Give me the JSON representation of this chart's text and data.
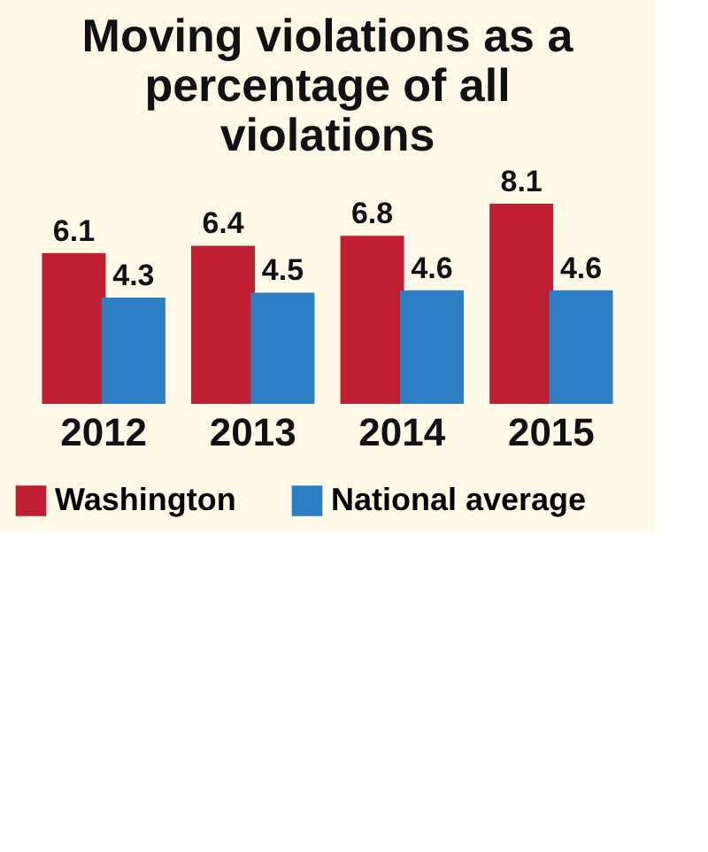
{
  "chart_data": {
    "type": "bar",
    "title": "Moving violations as a percentage of all violations",
    "categories": [
      "2012",
      "2013",
      "2014",
      "2015"
    ],
    "series": [
      {
        "name": "Washington",
        "color": "#c01f33",
        "values": [
          6.1,
          6.4,
          6.8,
          8.1
        ]
      },
      {
        "name": "National average",
        "color": "#2b7fc2",
        "values": [
          4.3,
          4.5,
          4.6,
          4.6
        ]
      }
    ],
    "data_labels": true,
    "legend": "bottom",
    "grid": false
  }
}
